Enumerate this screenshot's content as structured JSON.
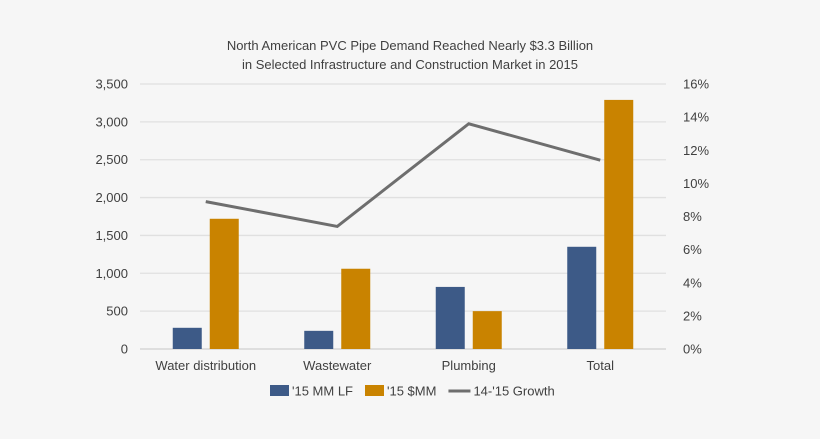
{
  "chart_data": {
    "type": "bar",
    "title": [
      "North American PVC Pipe Demand Reached Nearly $3.3 Billion",
      "in Selected Infrastructure and Construction Market in 2015"
    ],
    "categories": [
      "Water distribution",
      "Wastewater",
      "Plumbing",
      "Total"
    ],
    "series": [
      {
        "name": "'15 MM LF",
        "type": "bar",
        "axis": "left",
        "color": "#3d5a87",
        "values": [
          280,
          240,
          820,
          1350
        ]
      },
      {
        "name": "'15 $MM",
        "type": "bar",
        "axis": "left",
        "color": "#c98300",
        "values": [
          1720,
          1060,
          500,
          3290
        ]
      },
      {
        "name": "14-'15 Growth",
        "type": "line",
        "axis": "right",
        "color": "#6e6e6e",
        "values": [
          8.9,
          7.4,
          13.6,
          11.4
        ]
      }
    ],
    "ylim": [
      0,
      3500
    ],
    "yticks": [
      "0",
      "500",
      "1,000",
      "1,500",
      "2,000",
      "2,500",
      "3,000",
      "3,500"
    ],
    "y2lim": [
      0,
      16
    ],
    "y2ticks": [
      "0%",
      "2%",
      "4%",
      "6%",
      "8%",
      "10%",
      "12%",
      "14%",
      "16%"
    ],
    "grid": true,
    "legend": "bottom"
  }
}
